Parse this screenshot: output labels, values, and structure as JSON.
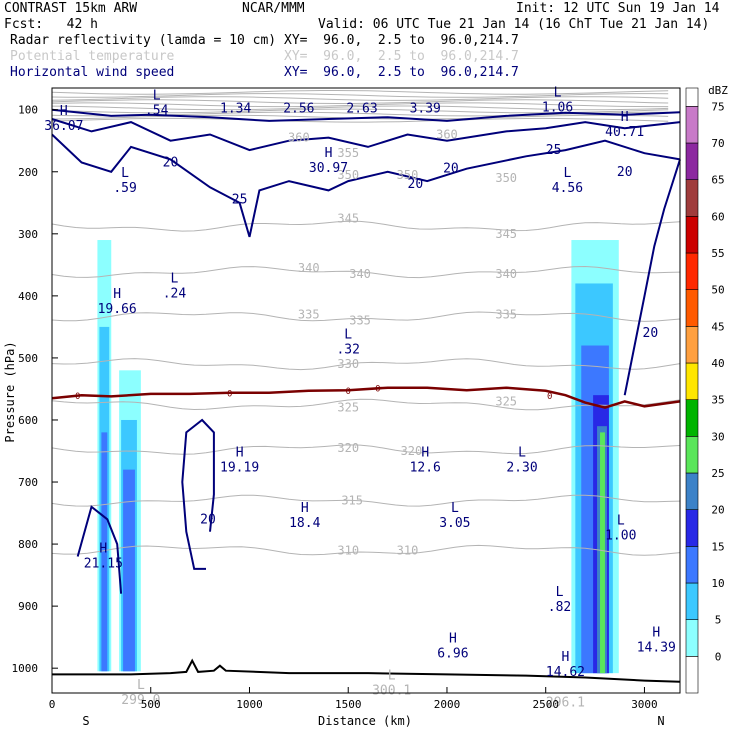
{
  "header": {
    "model": "CONTRAST 15km ARW",
    "center": "NCAR/MMM",
    "init": "Init: 12 UTC Sun 19 Jan 14",
    "fcst": "Fcst:   42 h",
    "valid": "Valid: 06 UTC Tue 21 Jan 14 (16 ChT Tue 21 Jan 14)",
    "fields": [
      {
        "name": "Radar reflectivity (lamda = 10 cm)",
        "xy": "XY=  96.0,  2.5 to  96.0,214.7"
      },
      {
        "name": "Potential temperature",
        "xy": "XY=  96.0,  2.5 to  96.0,214.7"
      },
      {
        "name": "Horizontal wind speed",
        "xy": "XY=  96.0,  2.5 to  96.0,214.7"
      }
    ]
  },
  "chart_data": {
    "type": "cross-section",
    "title": "Radar reflectivity / Potential temperature / Horizontal wind speed",
    "xlabel": "Distance (km)",
    "ylabel": "Pressure (hPa)",
    "xlim": [
      0,
      3180
    ],
    "ylim": [
      1040,
      65
    ],
    "x_ticks": [
      0,
      500,
      1000,
      1500,
      2000,
      2500,
      3000
    ],
    "y_ticks": [
      100,
      200,
      300,
      400,
      500,
      600,
      700,
      800,
      900,
      1000
    ],
    "x_end_labels": {
      "left": "S",
      "right": "N"
    },
    "colorbar": {
      "unit": "dBZ",
      "levels": [
        0,
        5,
        10,
        15,
        20,
        25,
        30,
        35,
        40,
        45,
        50,
        55,
        60,
        65,
        70,
        75
      ],
      "colors": [
        "#ffffff",
        "#8cffff",
        "#3cc8ff",
        "#3c78ff",
        "#2828e6",
        "#3c82c8",
        "#5ae65a",
        "#00b400",
        "#ffe600",
        "#ffa040",
        "#ff5a00",
        "#ff2800",
        "#cc0000",
        "#a03c3c",
        "#8c28a0",
        "#c87ac8"
      ]
    },
    "theta_labels": [
      {
        "text": "360",
        "x": 1250,
        "p": 145
      },
      {
        "text": "360",
        "x": 2000,
        "p": 140
      },
      {
        "text": "355",
        "x": 1500,
        "p": 170
      },
      {
        "text": "350",
        "x": 1500,
        "p": 205
      },
      {
        "text": "350",
        "x": 1800,
        "p": 205
      },
      {
        "text": "350",
        "x": 2300,
        "p": 210
      },
      {
        "text": "345",
        "x": 1500,
        "p": 275
      },
      {
        "text": "345",
        "x": 2300,
        "p": 300
      },
      {
        "text": "340",
        "x": 1300,
        "p": 355
      },
      {
        "text": "340",
        "x": 1560,
        "p": 365
      },
      {
        "text": "340",
        "x": 2300,
        "p": 365
      },
      {
        "text": "335",
        "x": 1300,
        "p": 430
      },
      {
        "text": "335",
        "x": 1560,
        "p": 440
      },
      {
        "text": "335",
        "x": 2300,
        "p": 430
      },
      {
        "text": "330",
        "x": 1500,
        "p": 510
      },
      {
        "text": "325",
        "x": 1500,
        "p": 580
      },
      {
        "text": "325",
        "x": 2300,
        "p": 570
      },
      {
        "text": "320",
        "x": 1500,
        "p": 645
      },
      {
        "text": "320",
        "x": 1820,
        "p": 650
      },
      {
        "text": "315",
        "x": 1520,
        "p": 730
      },
      {
        "text": "310",
        "x": 1500,
        "p": 810
      },
      {
        "text": "310",
        "x": 1800,
        "p": 810
      }
    ],
    "wind_labels": [
      {
        "text": "20",
        "x": 600,
        "p": 185
      },
      {
        "text": "25",
        "x": 950,
        "p": 245
      },
      {
        "text": "20",
        "x": 1840,
        "p": 220
      },
      {
        "text": "20",
        "x": 2020,
        "p": 195
      },
      {
        "text": "25",
        "x": 2540,
        "p": 165
      },
      {
        "text": "20",
        "x": 2900,
        "p": 200
      },
      {
        "text": "20",
        "x": 3030,
        "p": 460
      },
      {
        "text": "20",
        "x": 790,
        "p": 760
      }
    ],
    "wind_extrema": [
      {
        "text": "H 36.07",
        "x": 60,
        "p": 115
      },
      {
        "text": "L .54",
        "x": 530,
        "p": 90
      },
      {
        "text": "1.34",
        "x": 930,
        "p": 98
      },
      {
        "text": "2.56",
        "x": 1250,
        "p": 98
      },
      {
        "text": "2.63",
        "x": 1570,
        "p": 98
      },
      {
        "text": "3.39",
        "x": 1890,
        "p": 98
      },
      {
        "text": "L 1.06",
        "x": 2560,
        "p": 85
      },
      {
        "text": "H 40.71",
        "x": 2900,
        "p": 125
      },
      {
        "text": "H 30.97",
        "x": 1400,
        "p": 183
      },
      {
        "text": "L .59",
        "x": 370,
        "p": 215
      },
      {
        "text": "L 4.56",
        "x": 2610,
        "p": 215
      },
      {
        "text": "H 19.66",
        "x": 330,
        "p": 410
      },
      {
        "text": "L .24",
        "x": 620,
        "p": 385
      },
      {
        "text": "L .32",
        "x": 1500,
        "p": 475
      },
      {
        "text": "H 19.19",
        "x": 950,
        "p": 665
      },
      {
        "text": "H 12.6",
        "x": 1890,
        "p": 665
      },
      {
        "text": "L 2.30",
        "x": 2380,
        "p": 665
      },
      {
        "text": "H 18.4",
        "x": 1280,
        "p": 755
      },
      {
        "text": "L 3.05",
        "x": 2040,
        "p": 755
      },
      {
        "text": "H 21.15",
        "x": 260,
        "p": 820
      },
      {
        "text": "L 1.00",
        "x": 2880,
        "p": 775
      },
      {
        "text": "L .82",
        "x": 2570,
        "p": 890
      },
      {
        "text": "H 6.96",
        "x": 2030,
        "p": 965
      },
      {
        "text": "H 14.62",
        "x": 2600,
        "p": 995
      },
      {
        "text": "H 14.39",
        "x": 3060,
        "p": 955
      }
    ],
    "theta_extrema": [
      {
        "text": "L 300.1",
        "x": 1720,
        "p": 1025
      },
      {
        "text": "L 299.0",
        "x": 450,
        "p": 1040
      },
      {
        "text": "296.1",
        "x": 2600,
        "p": 1055
      }
    ],
    "freezing_level": {
      "label": "0",
      "x": [
        0,
        150,
        300,
        500,
        700,
        900,
        1100,
        1300,
        1500,
        1700,
        1900,
        2100,
        2300,
        2500,
        2600,
        2700,
        2800,
        2900,
        3000,
        3180
      ],
      "p": [
        565,
        560,
        562,
        558,
        558,
        556,
        556,
        553,
        552,
        548,
        548,
        552,
        548,
        553,
        560,
        572,
        580,
        570,
        578,
        570
      ]
    },
    "terrain": {
      "x": [
        0,
        200,
        400,
        600,
        680,
        710,
        740,
        820,
        850,
        880,
        1200,
        1600,
        2000,
        2400,
        2700,
        3000,
        3180
      ],
      "p": [
        1010,
        1010,
        1010,
        1008,
        1006,
        988,
        1006,
        1004,
        996,
        1004,
        1008,
        1008,
        1010,
        1012,
        1015,
        1020,
        1022
      ]
    },
    "reflectivity_cells": [
      {
        "x_range": [
          230,
          300
        ],
        "p_range": [
          310,
          1005
        ],
        "dbz": 5
      },
      {
        "x_range": [
          240,
          290
        ],
        "p_range": [
          450,
          1005
        ],
        "dbz": 10
      },
      {
        "x_range": [
          250,
          280
        ],
        "p_range": [
          620,
          1005
        ],
        "dbz": 15
      },
      {
        "x_range": [
          340,
          450
        ],
        "p_range": [
          520,
          1005
        ],
        "dbz": 5
      },
      {
        "x_range": [
          350,
          430
        ],
        "p_range": [
          600,
          1005
        ],
        "dbz": 10
      },
      {
        "x_range": [
          360,
          420
        ],
        "p_range": [
          680,
          1005
        ],
        "dbz": 15
      },
      {
        "x_range": [
          2630,
          2870
        ],
        "p_range": [
          310,
          1008
        ],
        "dbz": 5
      },
      {
        "x_range": [
          2650,
          2840
        ],
        "p_range": [
          380,
          1008
        ],
        "dbz": 10
      },
      {
        "x_range": [
          2680,
          2820
        ],
        "p_range": [
          480,
          1008
        ],
        "dbz": 15
      },
      {
        "x_range": [
          2740,
          2820
        ],
        "p_range": [
          560,
          1008
        ],
        "dbz": 20
      },
      {
        "x_range": [
          2760,
          2810
        ],
        "p_range": [
          610,
          1008
        ],
        "dbz": 25
      },
      {
        "x_range": [
          2775,
          2800
        ],
        "p_range": [
          620,
          1008
        ],
        "dbz": 30
      }
    ]
  }
}
